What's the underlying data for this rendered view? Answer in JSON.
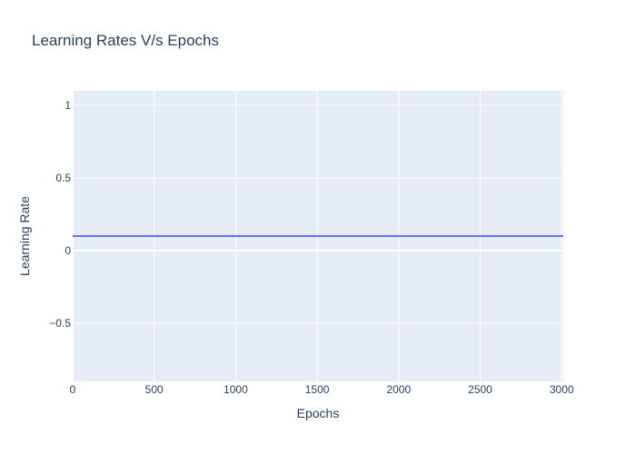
{
  "chart_data": {
    "type": "line",
    "title": "Learning Rates V/s Epochs",
    "xlabel": "Epochs",
    "ylabel": "Learning Rate",
    "xlim": [
      0,
      3010
    ],
    "ylim": [
      -0.9,
      1.1
    ],
    "x_ticks": [
      0,
      500,
      1000,
      1500,
      2000,
      2500,
      3000
    ],
    "x_tick_labels": [
      "0",
      "500",
      "1000",
      "1500",
      "2000",
      "2500",
      "3000"
    ],
    "y_ticks": [
      -0.5,
      0,
      0.5,
      1
    ],
    "y_tick_labels": [
      "−0.5",
      "0",
      "0.5",
      "1"
    ],
    "grid": true,
    "legend": "none",
    "colors": {
      "plot_background": "#e5ecf6",
      "grid": "#ffffff",
      "line": "#636efa",
      "text": "#2a3f5f"
    },
    "series": [
      {
        "x": [
          0,
          3010
        ],
        "y": [
          0.1,
          0.1
        ]
      }
    ]
  }
}
